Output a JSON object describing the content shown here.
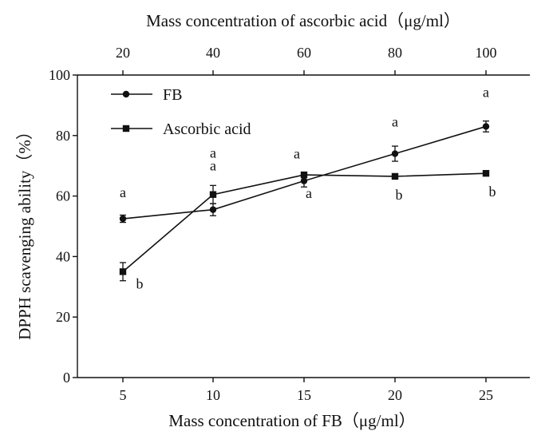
{
  "chart_data": {
    "type": "line",
    "title": "",
    "xlabel": "Mass concentration of FB（μg/ml）",
    "x2label": "Mass concentration of ascorbic acid（μg/ml）",
    "ylabel": "DPPH scavenging ability（%）",
    "ylim": [
      0,
      100
    ],
    "yticks": [
      "0",
      "20",
      "40",
      "60",
      "80",
      "100"
    ],
    "x": [
      5,
      10,
      15,
      20,
      25
    ],
    "xticks": [
      "5",
      "10",
      "15",
      "20",
      "25"
    ],
    "x2": [
      20,
      40,
      60,
      80,
      100
    ],
    "x2ticks": [
      "20",
      "40",
      "60",
      "80",
      "100"
    ],
    "legend_position": "top-left",
    "series": [
      {
        "name": "FB",
        "marker": "circle",
        "values": [
          52.5,
          55.5,
          65,
          74,
          83
        ],
        "errors": [
          1.2,
          2,
          2,
          2.5,
          1.8
        ],
        "labels": [
          "a",
          "a",
          "a",
          "a",
          "a"
        ]
      },
      {
        "name": "Ascorbic acid",
        "marker": "square",
        "values": [
          35,
          60.5,
          67,
          66.5,
          67.5
        ],
        "errors": [
          3,
          3,
          0.6,
          0.5,
          0.5
        ],
        "labels": [
          "b",
          "a",
          "a",
          "b",
          "b"
        ]
      }
    ]
  }
}
